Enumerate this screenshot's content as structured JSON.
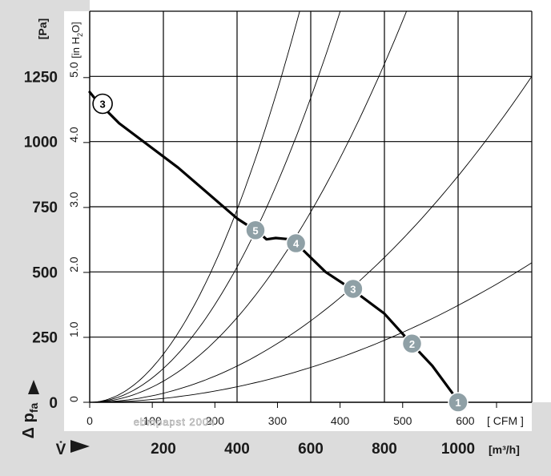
{
  "chart_data": {
    "type": "line",
    "y_axis_primary": {
      "unit": "[Pa]",
      "ticks": [
        0,
        250,
        500,
        750,
        1000,
        1250
      ],
      "range": [
        0,
        1500
      ]
    },
    "y_axis_secondary": {
      "unit_main": "[in H",
      "unit_sub": "2",
      "unit_end": "O]",
      "ticks": [
        "0",
        "1.0",
        "2.0",
        "3.0",
        "4.0",
        "5.0"
      ],
      "values": [
        0,
        1.0,
        2.0,
        3.0,
        4.0,
        5.0
      ]
    },
    "y_symbol": {
      "delta": "Δ p",
      "sub": "fa"
    },
    "x_axis_cfm": {
      "unit": "[ CFM ]",
      "ticks": [
        "0",
        "100",
        "200",
        "300",
        "400",
        "500",
        "600"
      ],
      "values": [
        0,
        100,
        200,
        300,
        400,
        500,
        600
      ]
    },
    "x_axis_m3h": {
      "unit": "[m³/h]",
      "symbol": "V̇",
      "ticks": [
        "200",
        "400",
        "600",
        "800",
        "1000"
      ],
      "values": [
        200,
        400,
        600,
        800,
        1000
      ]
    },
    "x_range_m3h": [
      0,
      1200
    ],
    "grid": true,
    "fan_curve": {
      "points": [
        [
          0,
          1190
        ],
        [
          20,
          1155
        ],
        [
          80,
          1070
        ],
        [
          240,
          900
        ],
        [
          400,
          705
        ],
        [
          460,
          650
        ],
        [
          480,
          625
        ],
        [
          505,
          630
        ],
        [
          545,
          625
        ],
        [
          560,
          610
        ],
        [
          640,
          500
        ],
        [
          710,
          435
        ],
        [
          800,
          340
        ],
        [
          880,
          215
        ],
        [
          930,
          140
        ],
        [
          990,
          25
        ]
      ]
    },
    "system_curves": [
      {
        "end": [
          1200,
          535
        ]
      },
      {
        "end": [
          1200,
          1250
        ]
      },
      {
        "end": [
          860,
          1500
        ]
      },
      {
        "end": [
          680,
          1500
        ]
      },
      {
        "end": [
          570,
          1500
        ]
      }
    ],
    "operating_points": [
      {
        "label": "1",
        "x": 1000,
        "y": 0
      },
      {
        "label": "2",
        "x": 875,
        "y": 225
      },
      {
        "label": "3",
        "x": 715,
        "y": 435
      },
      {
        "label": "4",
        "x": 560,
        "y": 610
      },
      {
        "label": "5",
        "x": 450,
        "y": 660
      }
    ],
    "curve_tag": {
      "label": "3",
      "x": 35,
      "y": 1145
    },
    "watermark": "ebmpapst 2004"
  }
}
